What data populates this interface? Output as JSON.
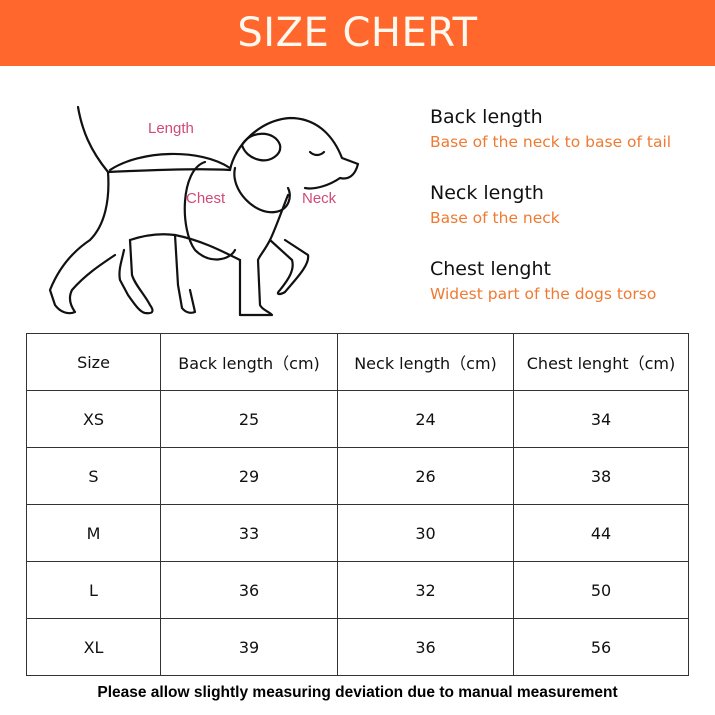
{
  "header": {
    "title": "SIZE CHERT",
    "color": "#ff672c"
  },
  "diagram": {
    "labels": {
      "length": "Length",
      "chest": "Chest",
      "neck": "Neck"
    },
    "label_color": "#d04a7a"
  },
  "definitions": [
    {
      "title": "Back length",
      "desc": "Base of the neck to base of tail"
    },
    {
      "title": "Neck length",
      "desc": "Base of the neck"
    },
    {
      "title": "Chest lenght",
      "desc": "Widest part of the dogs torso"
    }
  ],
  "table": {
    "headers": [
      "Size",
      "Back length（cm)",
      "Neck length（cm)",
      "Chest lenght（cm)"
    ],
    "rows": [
      [
        "XS",
        "25",
        "24",
        "34"
      ],
      [
        "S",
        "29",
        "26",
        "38"
      ],
      [
        "M",
        "33",
        "30",
        "44"
      ],
      [
        "L",
        "36",
        "32",
        "50"
      ],
      [
        "XL",
        "39",
        "36",
        "56"
      ]
    ]
  },
  "note": "Please allow slightly measuring deviation due to manual measurement"
}
